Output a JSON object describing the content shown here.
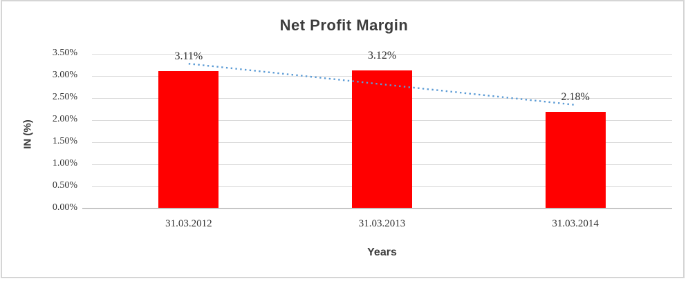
{
  "chart_data": {
    "type": "bar",
    "title": "Net Profit Margin",
    "xlabel": "Years",
    "ylabel": "IN (%)",
    "categories": [
      "31.03.2012",
      "31.03.2013",
      "31.03.2014"
    ],
    "values": [
      3.11,
      3.12,
      2.18
    ],
    "data_labels": [
      "3.11%",
      "3.12%",
      "2.18%"
    ],
    "y_ticks": [
      "0.00%",
      "0.50%",
      "1.00%",
      "1.50%",
      "2.00%",
      "2.50%",
      "3.00%",
      "3.50%"
    ],
    "ylim": [
      0,
      3.5
    ],
    "grid": true,
    "legend": "none",
    "bar_color": "#ff0000",
    "trendline": {
      "type": "linear",
      "style": "dotted",
      "color": "#5b9bd5",
      "start_value": 3.27,
      "end_value": 2.34
    }
  }
}
